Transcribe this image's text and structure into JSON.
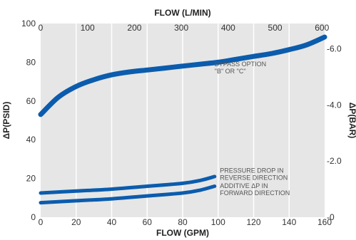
{
  "chart_data": {
    "type": "line",
    "x_bottom": {
      "label": "FLOW (GPM)",
      "range": [
        0,
        160
      ],
      "ticks": [
        0,
        20,
        40,
        60,
        80,
        100,
        120,
        140,
        160
      ]
    },
    "x_top": {
      "label": "FLOW (L/MIN)",
      "range": [
        0,
        605.7
      ],
      "ticks": [
        0,
        100,
        200,
        300,
        400,
        500,
        600
      ]
    },
    "y_left": {
      "label": "ΔP(PSID)",
      "range": [
        0,
        100
      ],
      "ticks": [
        0,
        20,
        40,
        60,
        80,
        100
      ]
    },
    "y_right": {
      "label": "ΔP(BAR)",
      "range": [
        0,
        6.9
      ],
      "ticks": [
        0,
        2.0,
        4.0,
        6.0
      ],
      "tick_labels": [
        "0",
        "2.0",
        "4.0",
        "6.0"
      ]
    },
    "grid": "vertical",
    "colors": {
      "plot_background": "#e6e6e6",
      "grid": "#ffffff",
      "series": "#0b5cad"
    },
    "series": [
      {
        "name": "BYPASS OPTION \"B\" OR \"C\"",
        "x": [
          0,
          10,
          20,
          30,
          40,
          50,
          60,
          70,
          80,
          90,
          100,
          110,
          120,
          130,
          140,
          150,
          160
        ],
        "y": [
          53,
          62,
          67.5,
          71,
          73.5,
          75,
          76,
          77,
          78,
          79,
          80,
          81.5,
          83,
          84.5,
          86.5,
          89,
          93
        ]
      },
      {
        "name": "PRESSURE DROP IN REVERSE DIRECTION",
        "x": [
          0,
          20,
          40,
          60,
          80,
          90,
          98
        ],
        "y": [
          12.5,
          13.5,
          14.5,
          16,
          17.5,
          19,
          21
        ]
      },
      {
        "name": "ADDITIVE ΔP IN FORWARD DIRECTION",
        "x": [
          0,
          20,
          40,
          60,
          80,
          90,
          98
        ],
        "y": [
          7.5,
          8.5,
          9.5,
          11,
          12.5,
          14,
          16
        ]
      }
    ],
    "annotations": [
      {
        "lines": [
          "BYPASS OPTION",
          "\"B\" OR \"C\""
        ],
        "x": 98,
        "y": 78
      },
      {
        "lines": [
          "PRESSURE DROP IN",
          "REVERSE DIRECTION"
        ],
        "x": 101,
        "y": 23
      },
      {
        "lines": [
          "ADDITIVE ΔP IN",
          "FORWARD DIRECTION"
        ],
        "x": 101,
        "y": 15
      }
    ]
  }
}
